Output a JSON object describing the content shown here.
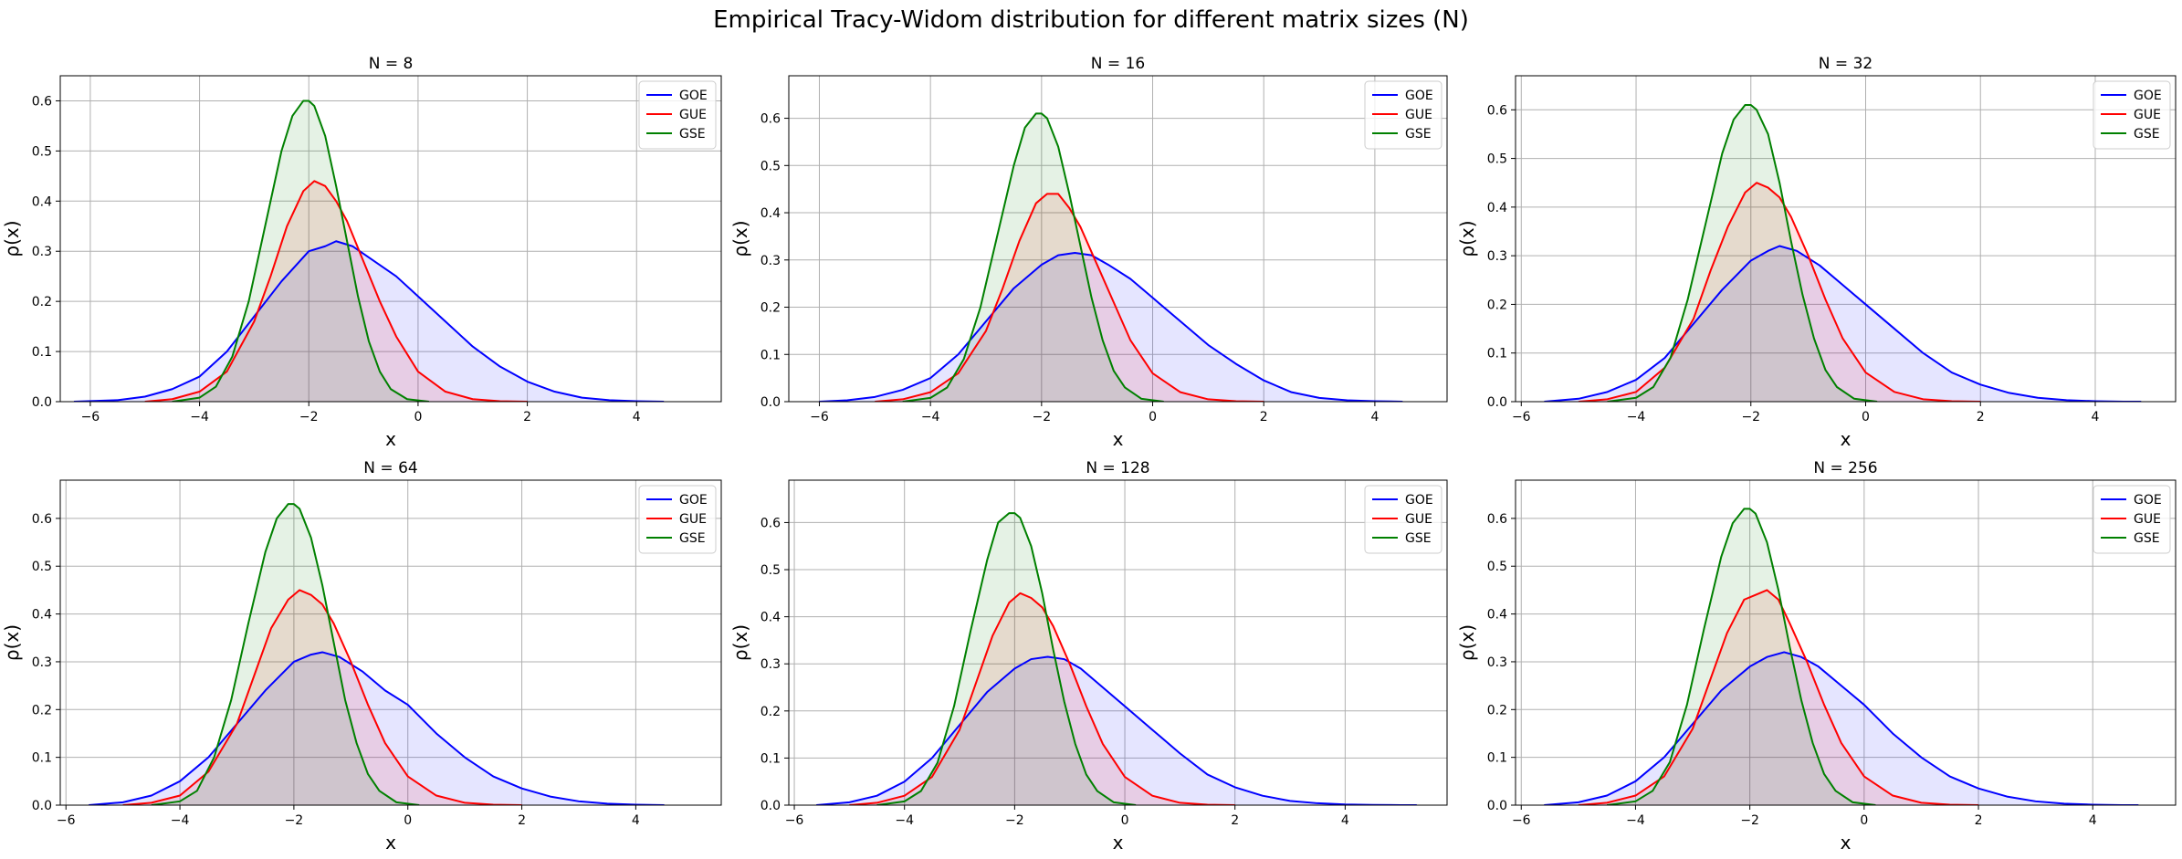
{
  "figure": {
    "title": "Empirical Tracy-Widom distribution for different matrix sizes (N)"
  },
  "series_colors": {
    "GOE": "#0000ff",
    "GUE": "#ff0000",
    "GSE": "#008000"
  },
  "chart_data": [
    {
      "type": "line",
      "title": "N = 8",
      "xlabel": "x",
      "ylabel": "ρ(x)",
      "xlim": [
        -6.55,
        5.55
      ],
      "ylim": [
        0,
        0.65
      ],
      "xticks": [
        -6,
        -4,
        -2,
        0,
        2,
        4
      ],
      "yticks": [
        0.0,
        0.1,
        0.2,
        0.3,
        0.4,
        0.5,
        0.6
      ],
      "grid": true,
      "legend": "top-right",
      "series": [
        {
          "name": "GOE",
          "x": [
            -6.3,
            -5.5,
            -5.0,
            -4.5,
            -4.0,
            -3.5,
            -3.0,
            -2.5,
            -2.0,
            -1.7,
            -1.5,
            -1.2,
            -0.8,
            -0.4,
            0.0,
            0.5,
            1.0,
            1.5,
            2.0,
            2.5,
            3.0,
            3.5,
            4.0,
            4.5
          ],
          "y": [
            0.0,
            0.003,
            0.01,
            0.025,
            0.05,
            0.1,
            0.17,
            0.24,
            0.3,
            0.31,
            0.32,
            0.31,
            0.28,
            0.25,
            0.21,
            0.16,
            0.11,
            0.07,
            0.04,
            0.02,
            0.008,
            0.003,
            0.001,
            0.0
          ]
        },
        {
          "name": "GUE",
          "x": [
            -5.0,
            -4.5,
            -4.0,
            -3.5,
            -3.0,
            -2.7,
            -2.4,
            -2.1,
            -1.9,
            -1.7,
            -1.5,
            -1.3,
            -1.0,
            -0.7,
            -0.4,
            0.0,
            0.5,
            1.0,
            1.5,
            2.0
          ],
          "y": [
            0.0,
            0.005,
            0.02,
            0.06,
            0.16,
            0.25,
            0.35,
            0.42,
            0.44,
            0.43,
            0.4,
            0.36,
            0.28,
            0.2,
            0.13,
            0.06,
            0.02,
            0.005,
            0.001,
            0.0
          ]
        },
        {
          "name": "GSE",
          "x": [
            -4.5,
            -4.0,
            -3.7,
            -3.4,
            -3.1,
            -2.8,
            -2.5,
            -2.3,
            -2.1,
            -2.0,
            -1.9,
            -1.7,
            -1.5,
            -1.3,
            -1.1,
            -0.9,
            -0.7,
            -0.5,
            -0.2,
            0.2
          ],
          "y": [
            0.0,
            0.008,
            0.03,
            0.09,
            0.2,
            0.35,
            0.5,
            0.57,
            0.6,
            0.6,
            0.59,
            0.53,
            0.43,
            0.32,
            0.21,
            0.12,
            0.06,
            0.025,
            0.005,
            0.0
          ]
        }
      ]
    },
    {
      "type": "line",
      "title": "N = 16",
      "xlabel": "x",
      "ylabel": "ρ(x)",
      "xlim": [
        -6.55,
        5.3
      ],
      "ylim": [
        0,
        0.69
      ],
      "xticks": [
        -6,
        -4,
        -2,
        0,
        2,
        4
      ],
      "yticks": [
        0.0,
        0.1,
        0.2,
        0.3,
        0.4,
        0.5,
        0.6
      ],
      "grid": true,
      "legend": "top-right",
      "series": [
        {
          "name": "GOE",
          "x": [
            -6.0,
            -5.5,
            -5.0,
            -4.5,
            -4.0,
            -3.5,
            -3.0,
            -2.5,
            -2.0,
            -1.7,
            -1.4,
            -1.1,
            -0.8,
            -0.4,
            0.0,
            0.5,
            1.0,
            1.5,
            2.0,
            2.5,
            3.0,
            3.5,
            4.0,
            4.5
          ],
          "y": [
            0.0,
            0.003,
            0.01,
            0.025,
            0.05,
            0.1,
            0.17,
            0.24,
            0.29,
            0.31,
            0.315,
            0.31,
            0.29,
            0.26,
            0.22,
            0.17,
            0.12,
            0.08,
            0.045,
            0.02,
            0.008,
            0.003,
            0.001,
            0.0
          ]
        },
        {
          "name": "GUE",
          "x": [
            -5.0,
            -4.5,
            -4.0,
            -3.5,
            -3.0,
            -2.7,
            -2.4,
            -2.1,
            -1.9,
            -1.7,
            -1.5,
            -1.3,
            -1.0,
            -0.7,
            -0.4,
            0.0,
            0.5,
            1.0,
            1.5,
            2.0
          ],
          "y": [
            0.0,
            0.005,
            0.02,
            0.06,
            0.15,
            0.24,
            0.34,
            0.42,
            0.44,
            0.44,
            0.41,
            0.37,
            0.29,
            0.21,
            0.13,
            0.06,
            0.02,
            0.005,
            0.001,
            0.0
          ]
        },
        {
          "name": "GSE",
          "x": [
            -4.5,
            -4.0,
            -3.7,
            -3.4,
            -3.1,
            -2.8,
            -2.5,
            -2.3,
            -2.1,
            -2.0,
            -1.9,
            -1.7,
            -1.5,
            -1.3,
            -1.1,
            -0.9,
            -0.7,
            -0.5,
            -0.2,
            0.2
          ],
          "y": [
            0.0,
            0.008,
            0.03,
            0.09,
            0.2,
            0.35,
            0.5,
            0.58,
            0.61,
            0.61,
            0.6,
            0.54,
            0.44,
            0.33,
            0.22,
            0.13,
            0.065,
            0.03,
            0.006,
            0.0
          ]
        }
      ]
    },
    {
      "type": "line",
      "title": "N = 32",
      "xlabel": "x",
      "ylabel": "ρ(x)",
      "xlim": [
        -6.1,
        5.4
      ],
      "ylim": [
        0,
        0.67
      ],
      "xticks": [
        -6,
        -4,
        -2,
        0,
        2,
        4
      ],
      "yticks": [
        0.0,
        0.1,
        0.2,
        0.3,
        0.4,
        0.5,
        0.6
      ],
      "grid": true,
      "legend": "top-right",
      "series": [
        {
          "name": "GOE",
          "x": [
            -5.6,
            -5.0,
            -4.5,
            -4.0,
            -3.5,
            -3.0,
            -2.5,
            -2.0,
            -1.7,
            -1.5,
            -1.2,
            -0.8,
            -0.4,
            0.0,
            0.5,
            1.0,
            1.5,
            2.0,
            2.5,
            3.0,
            3.5,
            4.0,
            4.5,
            4.8
          ],
          "y": [
            0.0,
            0.006,
            0.02,
            0.045,
            0.09,
            0.16,
            0.23,
            0.29,
            0.31,
            0.32,
            0.31,
            0.28,
            0.24,
            0.2,
            0.15,
            0.1,
            0.06,
            0.035,
            0.018,
            0.008,
            0.003,
            0.001,
            0.0,
            0.0
          ]
        },
        {
          "name": "GUE",
          "x": [
            -5.0,
            -4.5,
            -4.0,
            -3.5,
            -3.0,
            -2.7,
            -2.4,
            -2.1,
            -1.9,
            -1.7,
            -1.5,
            -1.3,
            -1.0,
            -0.7,
            -0.4,
            0.0,
            0.5,
            1.0,
            1.5,
            2.0
          ],
          "y": [
            0.0,
            0.005,
            0.02,
            0.07,
            0.17,
            0.27,
            0.36,
            0.43,
            0.45,
            0.44,
            0.42,
            0.38,
            0.3,
            0.21,
            0.13,
            0.06,
            0.02,
            0.005,
            0.001,
            0.0
          ]
        },
        {
          "name": "GSE",
          "x": [
            -4.5,
            -4.0,
            -3.7,
            -3.4,
            -3.1,
            -2.8,
            -2.5,
            -2.3,
            -2.1,
            -2.0,
            -1.9,
            -1.7,
            -1.5,
            -1.3,
            -1.1,
            -0.9,
            -0.7,
            -0.5,
            -0.2,
            0.2
          ],
          "y": [
            0.0,
            0.008,
            0.03,
            0.09,
            0.21,
            0.36,
            0.51,
            0.58,
            0.61,
            0.61,
            0.6,
            0.55,
            0.45,
            0.33,
            0.22,
            0.13,
            0.065,
            0.03,
            0.006,
            0.0
          ]
        }
      ]
    },
    {
      "type": "line",
      "title": "N = 64",
      "xlabel": "x",
      "ylabel": "ρ(x)",
      "xlim": [
        -6.1,
        5.5
      ],
      "ylim": [
        0,
        0.68
      ],
      "xticks": [
        -6,
        -4,
        -2,
        0,
        2,
        4
      ],
      "yticks": [
        0.0,
        0.1,
        0.2,
        0.3,
        0.4,
        0.5,
        0.6
      ],
      "grid": true,
      "legend": "top-right",
      "series": [
        {
          "name": "GOE",
          "x": [
            -5.6,
            -5.0,
            -4.5,
            -4.0,
            -3.5,
            -3.0,
            -2.5,
            -2.0,
            -1.7,
            -1.5,
            -1.2,
            -0.8,
            -0.4,
            0.0,
            0.5,
            1.0,
            1.5,
            2.0,
            2.5,
            3.0,
            3.5,
            4.0,
            4.5
          ],
          "y": [
            0.0,
            0.006,
            0.02,
            0.05,
            0.1,
            0.17,
            0.24,
            0.3,
            0.315,
            0.32,
            0.31,
            0.28,
            0.24,
            0.21,
            0.15,
            0.1,
            0.06,
            0.035,
            0.018,
            0.008,
            0.003,
            0.001,
            0.0
          ]
        },
        {
          "name": "GUE",
          "x": [
            -5.0,
            -4.5,
            -4.0,
            -3.5,
            -3.0,
            -2.7,
            -2.4,
            -2.1,
            -1.9,
            -1.7,
            -1.5,
            -1.3,
            -1.0,
            -0.7,
            -0.4,
            0.0,
            0.5,
            1.0,
            1.5,
            2.0
          ],
          "y": [
            0.0,
            0.005,
            0.02,
            0.07,
            0.17,
            0.27,
            0.37,
            0.43,
            0.45,
            0.44,
            0.42,
            0.38,
            0.3,
            0.21,
            0.13,
            0.06,
            0.02,
            0.005,
            0.001,
            0.0
          ]
        },
        {
          "name": "GSE",
          "x": [
            -4.5,
            -4.0,
            -3.7,
            -3.4,
            -3.1,
            -2.8,
            -2.5,
            -2.3,
            -2.1,
            -2.0,
            -1.9,
            -1.7,
            -1.5,
            -1.3,
            -1.1,
            -0.9,
            -0.7,
            -0.5,
            -0.2,
            0.2
          ],
          "y": [
            0.0,
            0.008,
            0.03,
            0.1,
            0.22,
            0.38,
            0.53,
            0.6,
            0.63,
            0.63,
            0.62,
            0.56,
            0.46,
            0.34,
            0.22,
            0.13,
            0.065,
            0.03,
            0.006,
            0.0
          ]
        }
      ]
    },
    {
      "type": "line",
      "title": "N = 128",
      "xlabel": "x",
      "ylabel": "ρ(x)",
      "xlim": [
        -6.1,
        5.85
      ],
      "ylim": [
        0,
        0.69
      ],
      "xticks": [
        -6,
        -4,
        -2,
        0,
        2,
        4
      ],
      "yticks": [
        0.0,
        0.1,
        0.2,
        0.3,
        0.4,
        0.5,
        0.6
      ],
      "grid": true,
      "legend": "top-right",
      "series": [
        {
          "name": "GOE",
          "x": [
            -5.6,
            -5.0,
            -4.5,
            -4.0,
            -3.5,
            -3.0,
            -2.5,
            -2.0,
            -1.7,
            -1.4,
            -1.1,
            -0.8,
            -0.4,
            0.0,
            0.5,
            1.0,
            1.5,
            2.0,
            2.5,
            3.0,
            3.5,
            4.0,
            4.5,
            5.0,
            5.3
          ],
          "y": [
            0.0,
            0.006,
            0.02,
            0.05,
            0.1,
            0.17,
            0.24,
            0.29,
            0.31,
            0.315,
            0.31,
            0.29,
            0.25,
            0.21,
            0.16,
            0.11,
            0.065,
            0.038,
            0.02,
            0.009,
            0.004,
            0.0015,
            0.0005,
            0.0,
            0.0
          ]
        },
        {
          "name": "GUE",
          "x": [
            -5.0,
            -4.5,
            -4.0,
            -3.5,
            -3.0,
            -2.7,
            -2.4,
            -2.1,
            -1.9,
            -1.7,
            -1.5,
            -1.3,
            -1.0,
            -0.7,
            -0.4,
            0.0,
            0.5,
            1.0,
            1.5,
            2.0
          ],
          "y": [
            0.0,
            0.005,
            0.02,
            0.06,
            0.16,
            0.26,
            0.36,
            0.43,
            0.45,
            0.44,
            0.42,
            0.38,
            0.3,
            0.21,
            0.13,
            0.06,
            0.02,
            0.005,
            0.001,
            0.0
          ]
        },
        {
          "name": "GSE",
          "x": [
            -4.5,
            -4.0,
            -3.7,
            -3.4,
            -3.1,
            -2.8,
            -2.5,
            -2.3,
            -2.1,
            -2.0,
            -1.9,
            -1.7,
            -1.5,
            -1.3,
            -1.1,
            -0.9,
            -0.7,
            -0.5,
            -0.2,
            0.2
          ],
          "y": [
            0.0,
            0.008,
            0.03,
            0.09,
            0.21,
            0.37,
            0.52,
            0.6,
            0.62,
            0.62,
            0.61,
            0.55,
            0.45,
            0.33,
            0.22,
            0.13,
            0.065,
            0.03,
            0.006,
            0.0
          ]
        }
      ]
    },
    {
      "type": "line",
      "title": "N = 256",
      "xlabel": "x",
      "ylabel": "ρ(x)",
      "xlim": [
        -6.1,
        5.45
      ],
      "ylim": [
        0,
        0.68
      ],
      "xticks": [
        -6,
        -4,
        -2,
        0,
        2,
        4
      ],
      "yticks": [
        0.0,
        0.1,
        0.2,
        0.3,
        0.4,
        0.5,
        0.6
      ],
      "grid": true,
      "legend": "top-right",
      "series": [
        {
          "name": "GOE",
          "x": [
            -5.6,
            -5.0,
            -4.5,
            -4.0,
            -3.5,
            -3.0,
            -2.5,
            -2.0,
            -1.7,
            -1.4,
            -1.1,
            -0.8,
            -0.4,
            0.0,
            0.5,
            1.0,
            1.5,
            2.0,
            2.5,
            3.0,
            3.5,
            4.0,
            4.5,
            4.8
          ],
          "y": [
            0.0,
            0.006,
            0.02,
            0.05,
            0.1,
            0.17,
            0.24,
            0.29,
            0.31,
            0.32,
            0.31,
            0.29,
            0.25,
            0.21,
            0.15,
            0.1,
            0.06,
            0.035,
            0.018,
            0.008,
            0.003,
            0.001,
            0.0,
            0.0
          ]
        },
        {
          "name": "GUE",
          "x": [
            -5.0,
            -4.5,
            -4.0,
            -3.5,
            -3.0,
            -2.7,
            -2.4,
            -2.1,
            -1.9,
            -1.7,
            -1.5,
            -1.3,
            -1.0,
            -0.7,
            -0.4,
            0.0,
            0.5,
            1.0,
            1.5,
            2.0
          ],
          "y": [
            0.0,
            0.005,
            0.02,
            0.06,
            0.16,
            0.26,
            0.36,
            0.43,
            0.44,
            0.45,
            0.43,
            0.38,
            0.3,
            0.21,
            0.13,
            0.06,
            0.02,
            0.005,
            0.001,
            0.0
          ]
        },
        {
          "name": "GSE",
          "x": [
            -4.5,
            -4.0,
            -3.7,
            -3.4,
            -3.1,
            -2.8,
            -2.5,
            -2.3,
            -2.1,
            -2.0,
            -1.9,
            -1.7,
            -1.5,
            -1.3,
            -1.1,
            -0.9,
            -0.7,
            -0.5,
            -0.2,
            0.2
          ],
          "y": [
            0.0,
            0.008,
            0.03,
            0.09,
            0.21,
            0.37,
            0.52,
            0.59,
            0.62,
            0.62,
            0.61,
            0.55,
            0.45,
            0.33,
            0.22,
            0.13,
            0.065,
            0.03,
            0.006,
            0.0
          ]
        }
      ]
    }
  ]
}
